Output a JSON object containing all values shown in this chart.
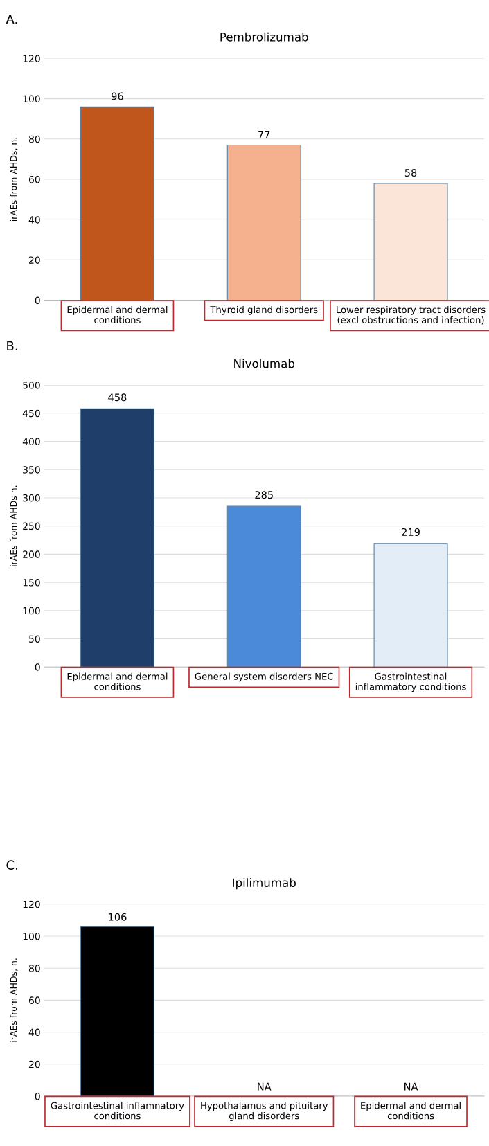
{
  "chart_data": [
    {
      "type": "bar",
      "title": "Pembrolizumab",
      "ylabel": "irAEs from AHDs, n.",
      "annotations": [
        "A."
      ],
      "categories": [
        "Epidermal and dermal\nconditions",
        "Thyroid gland disorders",
        "Lower respiratory tract disorders\n(excl obstructions and infection)"
      ],
      "values": [
        96,
        77,
        58
      ],
      "value_labels": [
        "96",
        "77",
        "58"
      ],
      "colors": [
        "#c0561b",
        "#f5b08e",
        "#fbe5d8"
      ],
      "ylim": [
        0,
        120
      ],
      "yticks": [
        0,
        20,
        40,
        60,
        80,
        100,
        120
      ],
      "grid": "y"
    },
    {
      "type": "bar",
      "title": "Nivolumab",
      "ylabel": "irAEs from AHDs n.",
      "annotations": [
        "B."
      ],
      "categories": [
        "Epidermal and dermal\nconditions",
        "General system disorders NEC",
        "Gastrointestinal\ninflammatory conditions"
      ],
      "values": [
        458,
        285,
        219
      ],
      "value_labels": [
        "458",
        "285",
        "219"
      ],
      "colors": [
        "#1f3f6a",
        "#4a8ad8",
        "#e3edf8"
      ],
      "ylim": [
        0,
        500
      ],
      "yticks": [
        0,
        50,
        100,
        150,
        200,
        250,
        300,
        350,
        400,
        450,
        500
      ],
      "grid": "y"
    },
    {
      "type": "bar",
      "title": "Ipilimumab",
      "ylabel": "irAEs from AHDs, n.",
      "annotations": [
        "C."
      ],
      "categories": [
        "Gastrointestinal inflamnatory\nconditions",
        "Hypothalamus and pituitary\ngland disorders",
        "Epidermal and dermal\nconditions"
      ],
      "values": [
        106,
        null,
        null
      ],
      "value_labels": [
        "106",
        "NA",
        "NA"
      ],
      "colors": [
        "#000000",
        "#000000",
        "#000000"
      ],
      "ylim": [
        0,
        120
      ],
      "yticks": [
        0,
        20,
        40,
        60,
        80,
        100,
        120
      ],
      "grid": "y"
    }
  ]
}
